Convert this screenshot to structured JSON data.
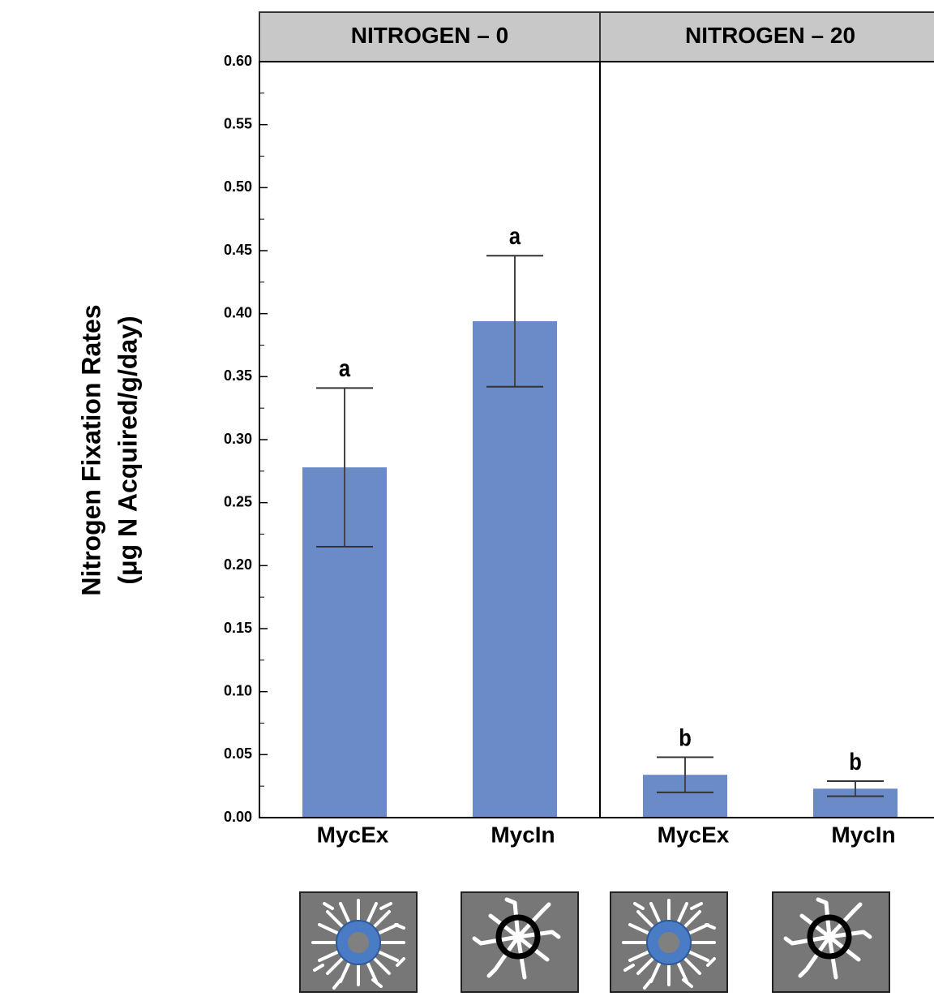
{
  "chart_data": {
    "type": "bar",
    "y_label": [
      "Nitrogen Fixation Rates",
      "(μg N Acquired/g/day)"
    ],
    "ylim": [
      0,
      0.6
    ],
    "yticks": [
      {
        "value": 0,
        "label": "0.00"
      },
      0.05,
      {
        "value": 0.1,
        "label": "0.10"
      },
      0.15,
      {
        "value": 0.2,
        "label": "0.20"
      },
      0.25,
      {
        "value": 0.3,
        "label": "0.30"
      },
      0.35,
      {
        "value": 0.4,
        "label": "0.40"
      },
      0.45,
      {
        "value": 0.5,
        "label": "0.50"
      },
      0.55,
      {
        "value": 0.6,
        "label": "0.60"
      }
    ],
    "y_minor_ticks": [
      0.025,
      0.075,
      0.125,
      0.175,
      0.225,
      0.275,
      0.325,
      0.375,
      0.425,
      0.475,
      0.525,
      0.575
    ],
    "color": "#6a8bc8",
    "facets": [
      {
        "title": "NITROGEN – 0",
        "categories": [
          "MycEx",
          "MycIn"
        ],
        "values": [
          0.278,
          0.394
        ],
        "errors": [
          0.063,
          0.052
        ],
        "annotations": [
          "a",
          "a"
        ]
      },
      {
        "title": "NITROGEN – 20",
        "categories": [
          "MycEx",
          "MycIn"
        ],
        "values": [
          0.034,
          0.023
        ],
        "errors": [
          0.014,
          0.006
        ],
        "annotations": [
          "b",
          "b"
        ]
      }
    ]
  }
}
